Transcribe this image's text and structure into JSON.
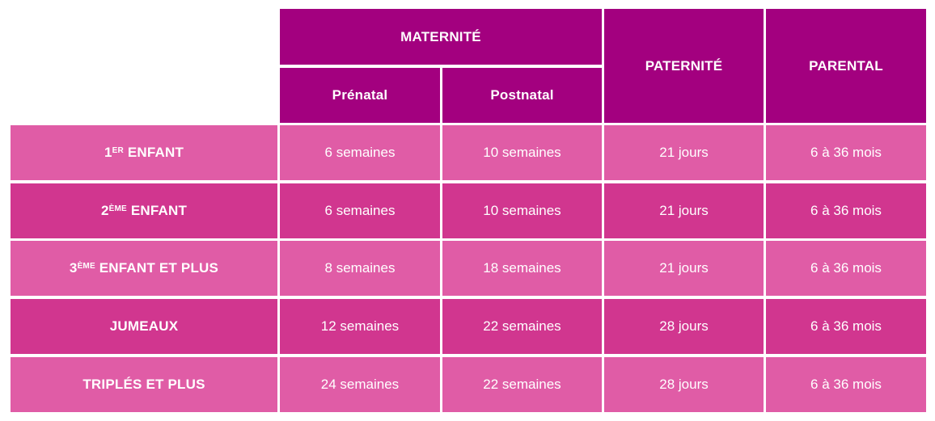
{
  "header": {
    "maternite": "MATERNITÉ",
    "prenatal": "Prénatal",
    "postnatal": "Postnatal",
    "paternite": "PATERNITÉ",
    "parental": "PARENTAL"
  },
  "rows": [
    {
      "label_main": "1",
      "label_sup": "ER",
      "label_rest": " ENFANT",
      "prenatal": "6 semaines",
      "postnatal": "10 semaines",
      "paternite": "21 jours",
      "parental": "6 à 36 mois"
    },
    {
      "label_main": "2",
      "label_sup": "ÈME",
      "label_rest": " ENFANT",
      "prenatal": "6 semaines",
      "postnatal": "10 semaines",
      "paternite": "21 jours",
      "parental": "6 à 36 mois"
    },
    {
      "label_main": "3",
      "label_sup": "ÈME",
      "label_rest": " ENFANT ET PLUS",
      "prenatal": "8 semaines",
      "postnatal": "18 semaines",
      "paternite": "21 jours",
      "parental": "6 à 36 mois"
    },
    {
      "label_main": "JUMEAUX",
      "label_sup": "",
      "label_rest": "",
      "prenatal": "12 semaines",
      "postnatal": "22 semaines",
      "paternite": "28 jours",
      "parental": "6 à 36 mois"
    },
    {
      "label_main": "TRIPLÉS ET PLUS",
      "label_sup": "",
      "label_rest": "",
      "prenatal": "24 semaines",
      "postnatal": "22 semaines",
      "paternite": "28 jours",
      "parental": "6 à 36 mois"
    }
  ],
  "colors": {
    "header": "#a3007f",
    "row_light": "#e05ca6",
    "row_dark": "#d1368f"
  }
}
